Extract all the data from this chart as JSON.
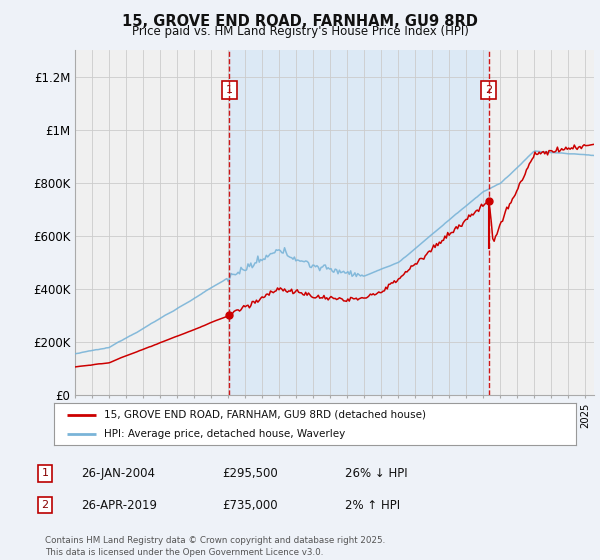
{
  "title": "15, GROVE END ROAD, FARNHAM, GU9 8RD",
  "subtitle": "Price paid vs. HM Land Registry's House Price Index (HPI)",
  "ylim": [
    0,
    1300000
  ],
  "yticks": [
    0,
    200000,
    400000,
    600000,
    800000,
    1000000,
    1200000
  ],
  "ytick_labels": [
    "£0",
    "£200K",
    "£400K",
    "£600K",
    "£800K",
    "£1M",
    "£1.2M"
  ],
  "background_color": "#eef2f8",
  "plot_bg_color": "#dce8f5",
  "plot_bg_left": "#f5f5f5",
  "plot_bg_right": "#f5f5f5",
  "grid_color": "#cccccc",
  "hpi_color": "#7ab4d8",
  "price_color": "#cc0000",
  "dashed_color": "#cc0000",
  "sale1_x": 2004.07,
  "sale1_y": 295500,
  "sale2_x": 2019.32,
  "sale2_y": 735000,
  "legend_entries": [
    "15, GROVE END ROAD, FARNHAM, GU9 8RD (detached house)",
    "HPI: Average price, detached house, Waverley"
  ],
  "table_rows": [
    [
      "1",
      "26-JAN-2004",
      "£295,500",
      "26% ↓ HPI"
    ],
    [
      "2",
      "26-APR-2019",
      "£735,000",
      "2% ↑ HPI"
    ]
  ],
  "footer": "Contains HM Land Registry data © Crown copyright and database right 2025.\nThis data is licensed under the Open Government Licence v3.0.",
  "xmin": 1995,
  "xmax": 2025.5
}
